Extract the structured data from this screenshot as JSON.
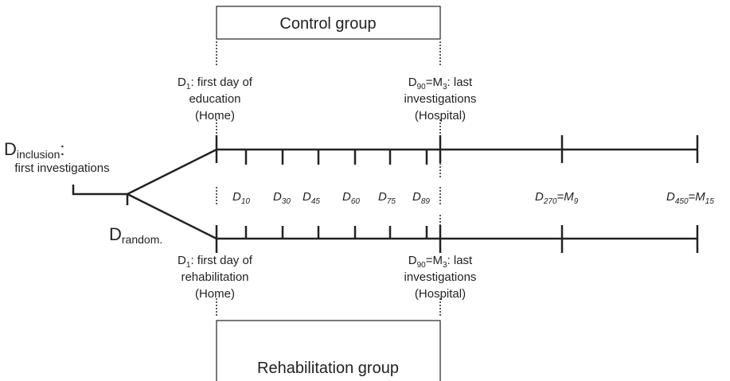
{
  "groups": {
    "control": "Control group",
    "rehabilitation": "Rehabilitation group"
  },
  "inclusion": {
    "main": "D",
    "sub": "inclusion",
    "suffix": ":",
    "line2": "first investigations"
  },
  "random": {
    "main": "D",
    "sub": "random."
  },
  "control_start": {
    "main": "D",
    "sub": "1",
    "rest": ": first day of",
    "lines": [
      "education",
      "(Home)"
    ]
  },
  "control_end": {
    "main": "D",
    "sub": "90",
    "mid": "=M",
    "sub2": "3",
    "rest": ": last",
    "lines": [
      "investigations",
      "(Hospital)"
    ]
  },
  "rehab_start": {
    "main": "D",
    "sub": "1",
    "rest": ": first day of",
    "lines": [
      "rehabilitation",
      "(Home)"
    ]
  },
  "rehab_end": {
    "main": "D",
    "sub": "90",
    "mid": "=M",
    "sub2": "3",
    "rest": ": last",
    "lines": [
      "investigations",
      "(Hospital)"
    ]
  },
  "timepoints": [
    {
      "main": "D",
      "sub": "10"
    },
    {
      "main": "D",
      "sub": "30"
    },
    {
      "main": "D",
      "sub": "45"
    },
    {
      "main": "D",
      "sub": "60"
    },
    {
      "main": "D",
      "sub": "75"
    },
    {
      "main": "D",
      "sub": "89"
    },
    {
      "main": "D",
      "sub": "270",
      "mid": "=M",
      "sub2": "9"
    },
    {
      "main": "D",
      "sub": "450",
      "mid": "=M",
      "sub2": "15"
    }
  ]
}
